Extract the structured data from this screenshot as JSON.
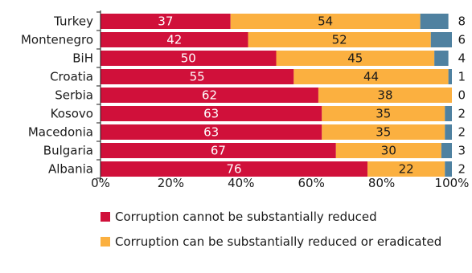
{
  "chart_data": {
    "type": "bar",
    "orientation": "horizontal",
    "stacked": true,
    "categories": [
      "Turkey",
      "Montenegro",
      "BiH",
      "Croatia",
      "Serbia",
      "Kosovo",
      "Macedonia",
      "Bulgaria",
      "Albania"
    ],
    "series": [
      {
        "name": "Corruption cannot be substantially reduced",
        "values": [
          37,
          42,
          50,
          55,
          62,
          63,
          63,
          67,
          76
        ],
        "color": "#d0103a",
        "label_color": "#ffffff"
      },
      {
        "name": "Corruption can be substantially reduced or eradicated",
        "values": [
          54,
          52,
          45,
          44,
          38,
          35,
          35,
          30,
          22
        ],
        "color": "#fbb040",
        "label_color": "#1a1a1a"
      },
      {
        "values": [
          8,
          6,
          4,
          1,
          0,
          2,
          2,
          3,
          2
        ],
        "color": "#4f81a0"
      }
    ],
    "xlim": [
      0,
      100
    ],
    "x_ticks": [
      "0%",
      "20%",
      "40%",
      "60%",
      "80%",
      "100%"
    ],
    "grid": false,
    "legend_position": "bottom"
  }
}
